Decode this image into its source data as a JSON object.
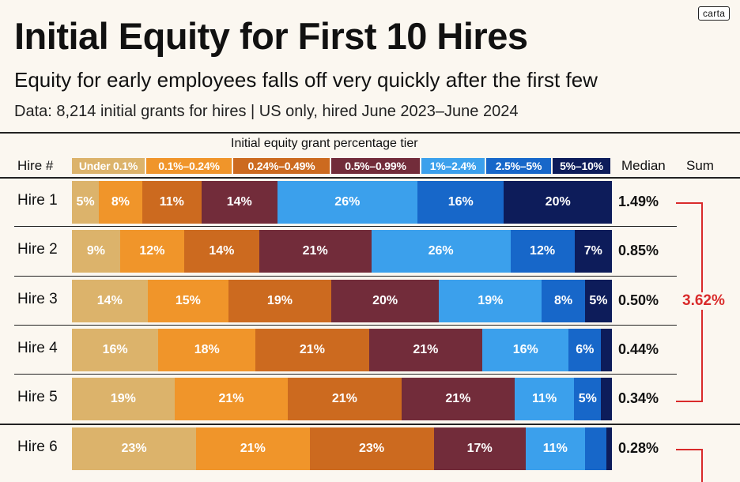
{
  "brand": "carta",
  "title": "Initial Equity for First 10 Hires",
  "subtitle": "Equity for early employees falls off very quickly after the first few",
  "source": "Data: 8,214 initial grants for hires | US only, hired June 2023–June 2024",
  "columns": {
    "hire": "Hire #",
    "median": "Median",
    "sum": "Sum"
  },
  "chart_data": {
    "type": "bar",
    "orientation": "horizontal",
    "stacked": true,
    "normalized": true,
    "legend_title": "Initial equity grant percentage tier",
    "legend_position": "top",
    "categories": [
      "Hire 1",
      "Hire 2",
      "Hire 3",
      "Hire 4",
      "Hire 5",
      "Hire 6"
    ],
    "tiers": [
      {
        "name": "Under 0.1%",
        "color": "#dcb36b"
      },
      {
        "name": "0.1%–0.24%",
        "color": "#f0952a"
      },
      {
        "name": "0.24%–0.49%",
        "color": "#cc6a1f"
      },
      {
        "name": "0.5%–0.99%",
        "color": "#722c3a"
      },
      {
        "name": "1%–2.4%",
        "color": "#3ba0ec"
      },
      {
        "name": "2.5%–5%",
        "color": "#1767c9"
      },
      {
        "name": "5%–10%",
        "color": "#0d1c5a"
      }
    ],
    "values": [
      [
        5,
        8,
        11,
        14,
        26,
        16,
        20
      ],
      [
        9,
        12,
        14,
        21,
        26,
        12,
        7
      ],
      [
        14,
        15,
        19,
        20,
        19,
        8,
        5
      ],
      [
        16,
        18,
        21,
        21,
        16,
        6,
        2
      ],
      [
        19,
        21,
        21,
        21,
        11,
        5,
        2
      ],
      [
        23,
        21,
        23,
        17,
        11,
        4,
        1
      ]
    ],
    "labels": [
      [
        "5%",
        "8%",
        "11%",
        "14%",
        "26%",
        "16%",
        "20%"
      ],
      [
        "9%",
        "12%",
        "14%",
        "21%",
        "26%",
        "12%",
        "7%"
      ],
      [
        "14%",
        "15%",
        "19%",
        "20%",
        "19%",
        "8%",
        "5%"
      ],
      [
        "16%",
        "18%",
        "21%",
        "21%",
        "16%",
        "6%",
        ""
      ],
      [
        "19%",
        "21%",
        "21%",
        "21%",
        "11%",
        "5%",
        ""
      ],
      [
        "23%",
        "21%",
        "23%",
        "17%",
        "11%",
        "",
        ""
      ]
    ],
    "medians": [
      "1.49%",
      "0.85%",
      "0.50%",
      "0.44%",
      "0.34%",
      "0.28%"
    ],
    "sum": {
      "label": "3.62%",
      "covers": [
        "Hire 1",
        "Hire 2",
        "Hire 3",
        "Hire 4",
        "Hire 5"
      ],
      "color": "#d92b2b"
    }
  }
}
